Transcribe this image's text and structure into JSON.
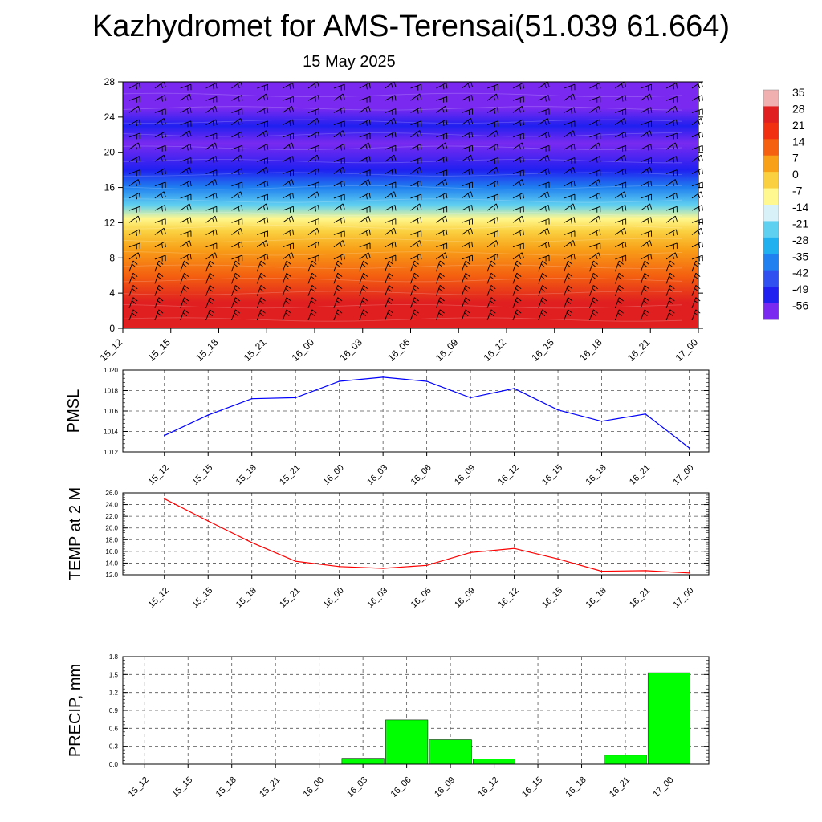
{
  "header": {
    "title": "Kazhydromet for AMS-Terensai(51.039 61.664)",
    "subtitle": "15 May 2025"
  },
  "chart_data": [
    {
      "type": "heatmap",
      "x": [
        "15_12",
        "15_15",
        "15_18",
        "15_21",
        "16_00",
        "16_03",
        "16_06",
        "16_09",
        "16_12",
        "16_15",
        "16_18",
        "16_21",
        "17_00"
      ],
      "ylim": [
        0,
        28
      ],
      "yticks": [
        0,
        4,
        8,
        12,
        16,
        20,
        24,
        28
      ],
      "colorbar": {
        "labels": [
          "35",
          "28",
          "21",
          "14",
          "7",
          "0",
          "-7",
          "-14",
          "-21",
          "-28",
          "-35",
          "-42",
          "-49",
          "-56"
        ],
        "stops": [
          {
            "value": 35,
            "color": "#f0b0b0"
          },
          {
            "value": 28,
            "color": "#e02020"
          },
          {
            "value": 21,
            "color": "#f03010"
          },
          {
            "value": 14,
            "color": "#f46010"
          },
          {
            "value": 7,
            "color": "#f8a018"
          },
          {
            "value": 0,
            "color": "#fad040"
          },
          {
            "value": -7,
            "color": "#fff890"
          },
          {
            "value": -14,
            "color": "#d8f0f8"
          },
          {
            "value": -21,
            "color": "#60d0f0"
          },
          {
            "value": -28,
            "color": "#20b0f0"
          },
          {
            "value": -35,
            "color": "#2080f0"
          },
          {
            "value": -42,
            "color": "#3050f0"
          },
          {
            "value": -49,
            "color": "#2020f0"
          },
          {
            "value": -56,
            "color": "#7a2af0"
          }
        ]
      },
      "vertical_profile": [
        {
          "level": 0,
          "value": 30
        },
        {
          "level": 3,
          "value": 25
        },
        {
          "level": 6,
          "value": 16
        },
        {
          "level": 9,
          "value": 8
        },
        {
          "level": 11,
          "value": 2
        },
        {
          "level": 12.5,
          "value": -8
        },
        {
          "level": 14,
          "value": -21
        },
        {
          "level": 16,
          "value": -35
        },
        {
          "level": 18,
          "value": -48
        },
        {
          "level": 21,
          "value": -54
        },
        {
          "level": 23,
          "value": -50
        },
        {
          "level": 25,
          "value": -58
        },
        {
          "level": 28,
          "value": -60
        }
      ],
      "wind_barbs": true
    },
    {
      "type": "line",
      "ylabel": "PMSL",
      "x": [
        "15_12",
        "15_15",
        "15_18",
        "15_21",
        "16_00",
        "16_03",
        "16_06",
        "16_09",
        "16_12",
        "16_15",
        "16_18",
        "16_21",
        "17_00"
      ],
      "values": [
        1013.6,
        1015.6,
        1017.2,
        1017.3,
        1018.9,
        1019.3,
        1018.9,
        1017.3,
        1018.2,
        1016.1,
        1015.0,
        1015.7,
        1012.4
      ],
      "ylim": [
        1012,
        1020
      ],
      "yticks": [
        "1012",
        "1014",
        "1016",
        "1018",
        "1020"
      ],
      "grid": true,
      "color": "#0000ff"
    },
    {
      "type": "line",
      "ylabel": "TEMP at 2 M",
      "x": [
        "15_12",
        "15_15",
        "15_18",
        "15_21",
        "16_00",
        "16_03",
        "16_06",
        "16_09",
        "16_12",
        "16_15",
        "16_18",
        "16_21",
        "17_00"
      ],
      "values": [
        25.0,
        21.2,
        17.5,
        14.3,
        13.4,
        13.1,
        13.6,
        15.8,
        16.5,
        14.7,
        12.6,
        12.7,
        12.3
      ],
      "ylim": [
        12,
        26
      ],
      "yticks": [
        "12.0",
        "14.0",
        "16.0",
        "18.0",
        "20.0",
        "22.0",
        "24.0",
        "26.0"
      ],
      "grid": true,
      "color": "#ff0000"
    },
    {
      "type": "bar",
      "ylabel": "PRECIP, mm",
      "categories": [
        "15_12",
        "15_15",
        "15_18",
        "15_21",
        "16_00",
        "16_03",
        "16_06",
        "16_09",
        "16_12",
        "16_15",
        "16_18",
        "16_21",
        "17_00"
      ],
      "values": [
        0,
        0,
        0,
        0,
        0,
        0.1,
        0.74,
        0.41,
        0.09,
        0,
        0,
        0.15,
        1.53
      ],
      "ylim": [
        0,
        1.8
      ],
      "yticks": [
        "0.0",
        "0.3",
        "0.6",
        "0.9",
        "1.2",
        "1.5",
        "1.8"
      ],
      "grid": true,
      "color": "#00ff00"
    }
  ]
}
